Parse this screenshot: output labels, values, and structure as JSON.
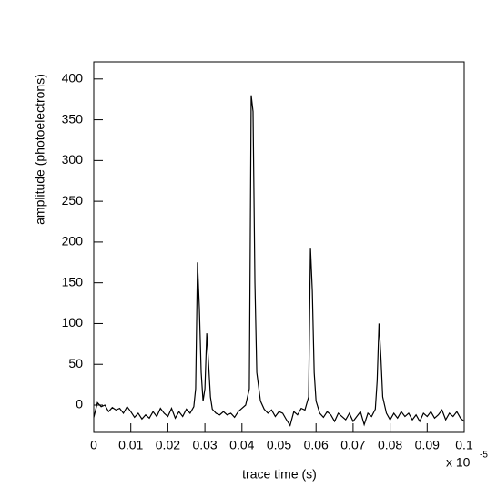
{
  "chart_data": {
    "type": "line",
    "xlabel": "trace time (s)",
    "ylabel": "amplitude (photoelectrons)",
    "x_multiplier": "x 10",
    "x_exponent": "-5",
    "xlim": [
      0,
      0.1
    ],
    "xticks": [
      0,
      0.01,
      0.02,
      0.03,
      0.04,
      0.05,
      0.06,
      0.07,
      0.08,
      0.09,
      0.1
    ],
    "ylim": [
      -33.5,
      421
    ],
    "yticks": [
      0,
      50,
      100,
      150,
      200,
      250,
      300,
      350,
      400
    ],
    "grid": false,
    "series": [
      {
        "name": "trace",
        "color": "#000000",
        "x": [
          0,
          0.001,
          0.002,
          0.003,
          0.004,
          0.005,
          0.006,
          0.007,
          0.008,
          0.009,
          0.01,
          0.011,
          0.012,
          0.013,
          0.014,
          0.015,
          0.016,
          0.017,
          0.018,
          0.019,
          0.02,
          0.021,
          0.022,
          0.023,
          0.024,
          0.025,
          0.026,
          0.027,
          0.0275,
          0.028,
          0.0285,
          0.029,
          0.0295,
          0.03,
          0.0305,
          0.031,
          0.0315,
          0.032,
          0.033,
          0.034,
          0.035,
          0.036,
          0.037,
          0.038,
          0.039,
          0.04,
          0.041,
          0.042,
          0.0425,
          0.043,
          0.0435,
          0.044,
          0.045,
          0.046,
          0.047,
          0.048,
          0.049,
          0.05,
          0.051,
          0.052,
          0.053,
          0.054,
          0.055,
          0.056,
          0.057,
          0.058,
          0.0585,
          0.059,
          0.0595,
          0.06,
          0.061,
          0.062,
          0.063,
          0.064,
          0.065,
          0.066,
          0.067,
          0.068,
          0.069,
          0.07,
          0.071,
          0.072,
          0.073,
          0.074,
          0.075,
          0.076,
          0.0765,
          0.077,
          0.0775,
          0.078,
          0.079,
          0.08,
          0.081,
          0.082,
          0.083,
          0.084,
          0.085,
          0.086,
          0.087,
          0.088,
          0.089,
          0.09,
          0.091,
          0.092,
          0.093,
          0.094,
          0.095,
          0.096,
          0.097,
          0.098,
          0.099,
          0.1
        ],
        "values": [
          -15,
          3,
          -2,
          0,
          -8,
          -3,
          -6,
          -4,
          -10,
          -2,
          -8,
          -15,
          -10,
          -17,
          -12,
          -16,
          -8,
          -14,
          -4,
          -10,
          -14,
          -4,
          -16,
          -8,
          -14,
          -5,
          -10,
          -2,
          20,
          175,
          120,
          40,
          5,
          20,
          88,
          50,
          10,
          -5,
          -10,
          -12,
          -8,
          -12,
          -10,
          -15,
          -8,
          -4,
          0,
          20,
          380,
          360,
          150,
          40,
          5,
          -5,
          -10,
          -6,
          -14,
          -8,
          -10,
          -18,
          -25,
          -8,
          -12,
          -4,
          -6,
          10,
          193,
          140,
          40,
          5,
          -10,
          -15,
          -8,
          -12,
          -20,
          -10,
          -14,
          -18,
          -10,
          -20,
          -14,
          -8,
          -24,
          -10,
          -14,
          -5,
          30,
          100,
          60,
          10,
          -10,
          -18,
          -10,
          -16,
          -8,
          -14,
          -10,
          -18,
          -12,
          -20,
          -10,
          -14,
          -8,
          -16,
          -12,
          -6,
          -18,
          -10,
          -14,
          -8,
          -16,
          -20
        ]
      }
    ]
  }
}
